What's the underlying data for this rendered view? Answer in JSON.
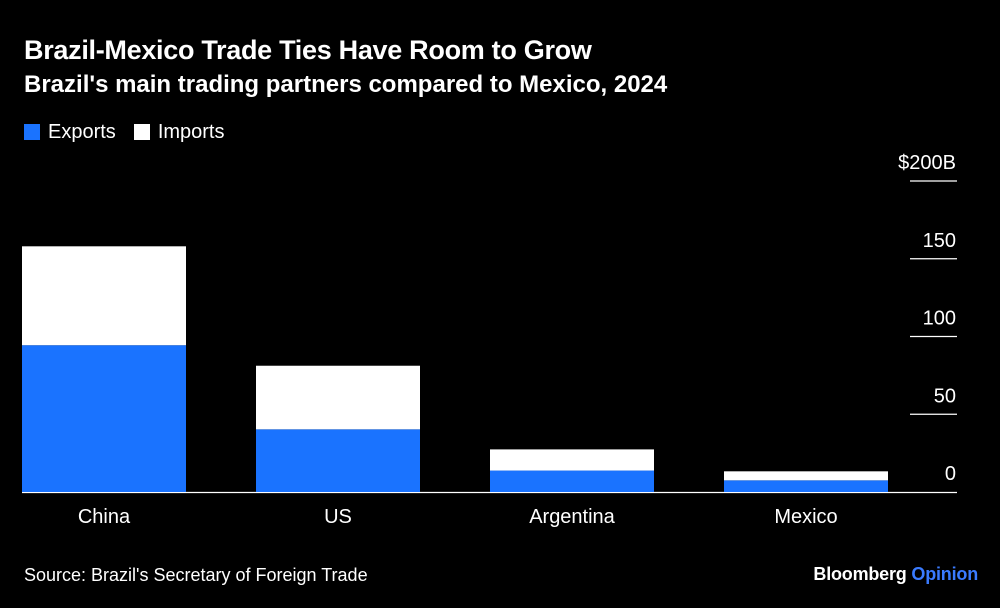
{
  "title": "Brazil-Mexico Trade Ties Have Room to Grow",
  "subtitle": "Brazil's main trading partners compared to Mexico, 2024",
  "source": "Source: Brazil's Secretary of Foreign Trade",
  "brand": {
    "name": "Bloomberg",
    "section": "Opinion"
  },
  "colors": {
    "background": "#000000",
    "exports": "#1a73ff",
    "imports": "#ffffff",
    "text": "#ffffff",
    "brand_accent": "#3a7bff"
  },
  "chart_data": {
    "type": "bar",
    "stacked": true,
    "categories": [
      "China",
      "US",
      "Argentina",
      "Mexico"
    ],
    "series": [
      {
        "name": "Exports",
        "values": [
          94.4,
          40.3,
          13.8,
          7.5
        ],
        "color": "#1a73ff"
      },
      {
        "name": "Imports",
        "values": [
          63.6,
          40.9,
          13.6,
          5.8
        ],
        "color": "#ffffff"
      }
    ],
    "ylim": [
      0,
      200
    ],
    "yticks": [
      {
        "value": 200,
        "label": "$200B"
      },
      {
        "value": 150,
        "label": "150"
      },
      {
        "value": 100,
        "label": "100"
      },
      {
        "value": 50,
        "label": "50"
      },
      {
        "value": 0,
        "label": "0"
      }
    ],
    "y_axis_side": "right",
    "legend_position": "top-left",
    "grid": false
  }
}
